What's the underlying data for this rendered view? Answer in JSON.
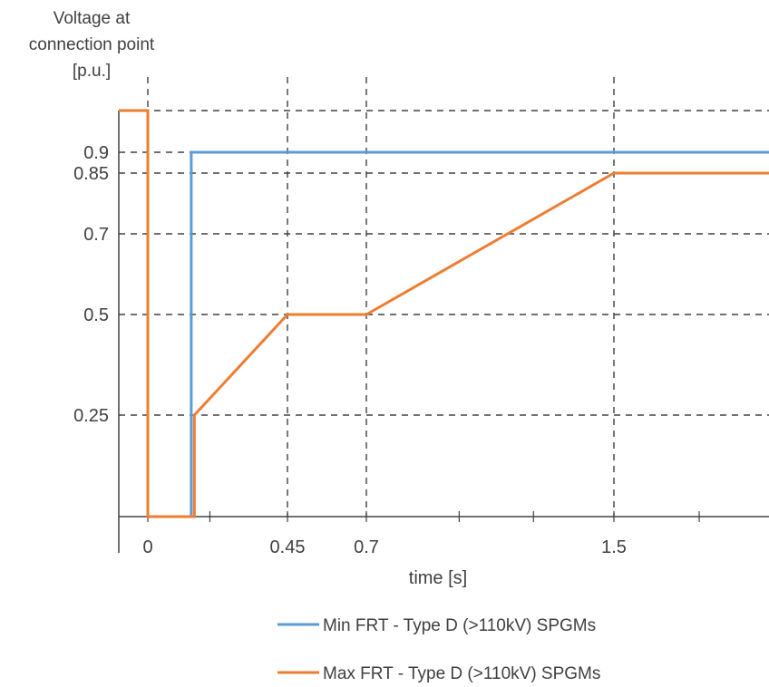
{
  "chart_data": {
    "type": "line",
    "ylabel": [
      "Voltage at",
      "connection point",
      "[p.u.]"
    ],
    "xlabel": "time [s]",
    "x_ticks": [
      "0",
      "0.45",
      "0.7",
      "1.5"
    ],
    "y_ticks": [
      "0.9",
      "0.85",
      "0.7",
      "0.5",
      "0.25"
    ],
    "grid": true,
    "legend_position": "bottom",
    "series": [
      {
        "name": "Min FRT - Type D (>110kV) SPGMs",
        "color": "#5b9bd5",
        "points": [
          [
            0.14,
            0
          ],
          [
            0.14,
            0.9
          ],
          [
            1.9,
            0.9
          ]
        ]
      },
      {
        "name": "Max FRT - Type D (>110kV) SPGMs",
        "color": "#ed7d31",
        "points": [
          [
            -0.1,
            1.0
          ],
          [
            0.0,
            1.0
          ],
          [
            0.0,
            0
          ],
          [
            0.15,
            0
          ],
          [
            0.15,
            0.25
          ],
          [
            0.45,
            0.5
          ],
          [
            0.7,
            0.5
          ],
          [
            1.5,
            0.85
          ],
          [
            1.9,
            0.85
          ]
        ]
      }
    ]
  }
}
